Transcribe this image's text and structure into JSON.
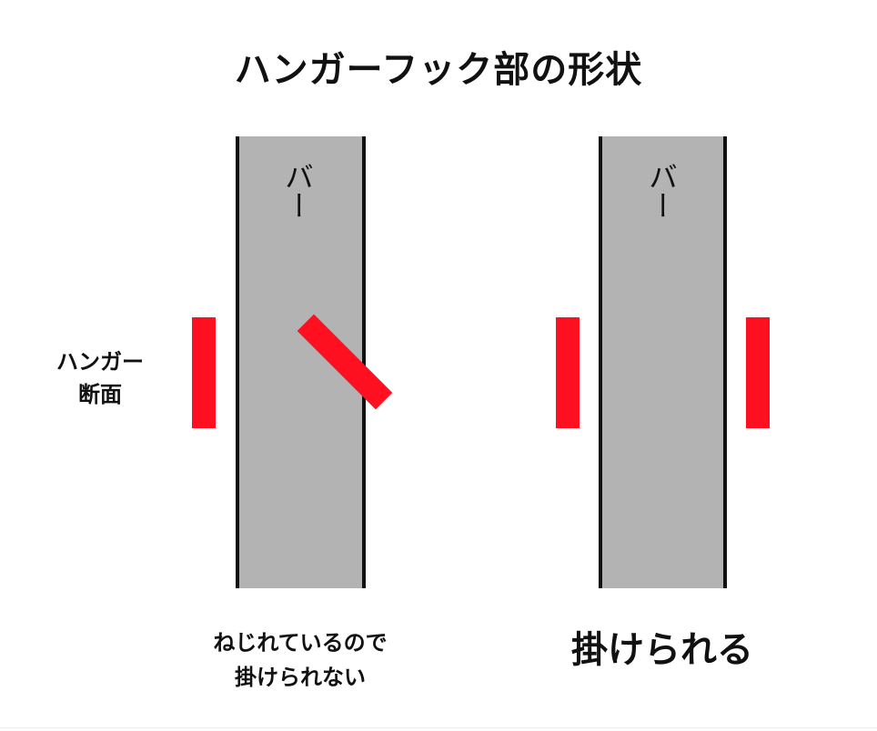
{
  "title": "ハンガーフック部の形状",
  "bar_label": "バー",
  "hanger_label": {
    "line1": "ハンガー",
    "line2": "断面"
  },
  "left_panel": {
    "caption_line1": "ねじれているので",
    "caption_line2": "掛けられない"
  },
  "right_panel": {
    "caption": "掛けられる"
  },
  "colors": {
    "bar_fill": "#b3b3b3",
    "bar_edge": "#111111",
    "hanger": "#ff1020"
  }
}
